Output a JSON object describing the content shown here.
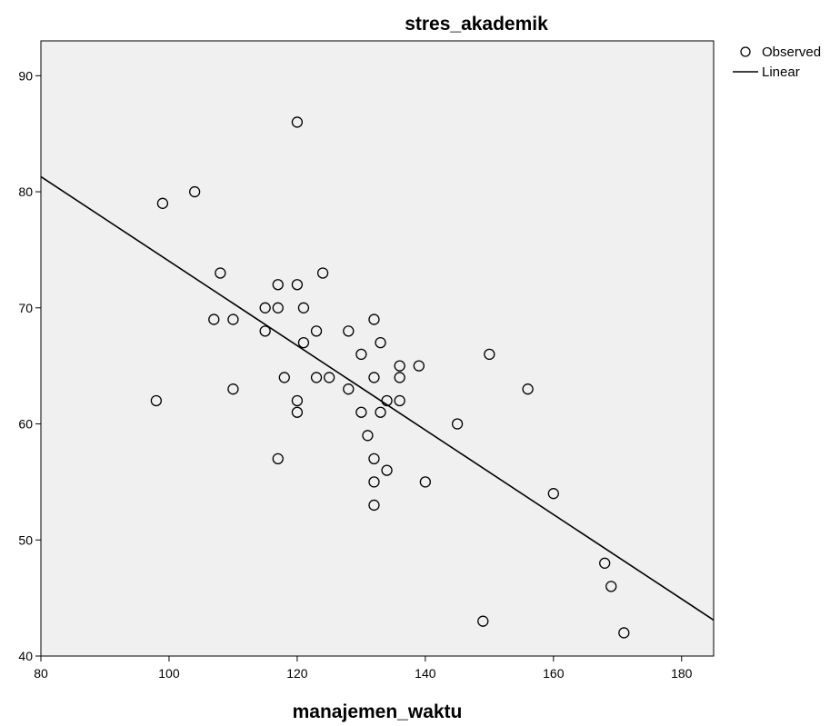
{
  "chart_data": {
    "type": "scatter",
    "title": "stres_akademik",
    "xlabel": "manajemen_waktu",
    "ylabel": "",
    "xlim": [
      80,
      185
    ],
    "ylim": [
      40,
      93
    ],
    "xticks": [
      80,
      100,
      120,
      140,
      160,
      180
    ],
    "yticks": [
      40,
      50,
      60,
      70,
      80,
      90
    ],
    "grid": false,
    "legend": {
      "placement": "right-top",
      "entries": [
        "Observed",
        "Linear"
      ]
    },
    "plot_background": "#f0f0f0",
    "series": [
      {
        "name": "Observed",
        "kind": "points",
        "marker": "open-circle",
        "points": [
          [
            98,
            62
          ],
          [
            99,
            79
          ],
          [
            104,
            80
          ],
          [
            107,
            69
          ],
          [
            108,
            73
          ],
          [
            110,
            69
          ],
          [
            110,
            63
          ],
          [
            115,
            70
          ],
          [
            115,
            68
          ],
          [
            117,
            72
          ],
          [
            117,
            70
          ],
          [
            117,
            57
          ],
          [
            118,
            64
          ],
          [
            120,
            86
          ],
          [
            120,
            72
          ],
          [
            120,
            62
          ],
          [
            120,
            61
          ],
          [
            121,
            70
          ],
          [
            121,
            67
          ],
          [
            123,
            68
          ],
          [
            123,
            64
          ],
          [
            125,
            64
          ],
          [
            124,
            73
          ],
          [
            128,
            68
          ],
          [
            128,
            63
          ],
          [
            130,
            66
          ],
          [
            130,
            61
          ],
          [
            131,
            59
          ],
          [
            132,
            69
          ],
          [
            132,
            64
          ],
          [
            132,
            57
          ],
          [
            132,
            55
          ],
          [
            132,
            53
          ],
          [
            133,
            67
          ],
          [
            133,
            61
          ],
          [
            134,
            62
          ],
          [
            134,
            56
          ],
          [
            136,
            65
          ],
          [
            136,
            64
          ],
          [
            136,
            62
          ],
          [
            139,
            65
          ],
          [
            140,
            55
          ],
          [
            145,
            60
          ],
          [
            149,
            43
          ],
          [
            150,
            66
          ],
          [
            156,
            63
          ],
          [
            160,
            54
          ],
          [
            168,
            48
          ],
          [
            169,
            46
          ],
          [
            171,
            42
          ]
        ]
      },
      {
        "name": "Linear",
        "kind": "line",
        "points": [
          [
            80,
            81.3
          ],
          [
            185,
            43.1
          ]
        ]
      }
    ]
  }
}
